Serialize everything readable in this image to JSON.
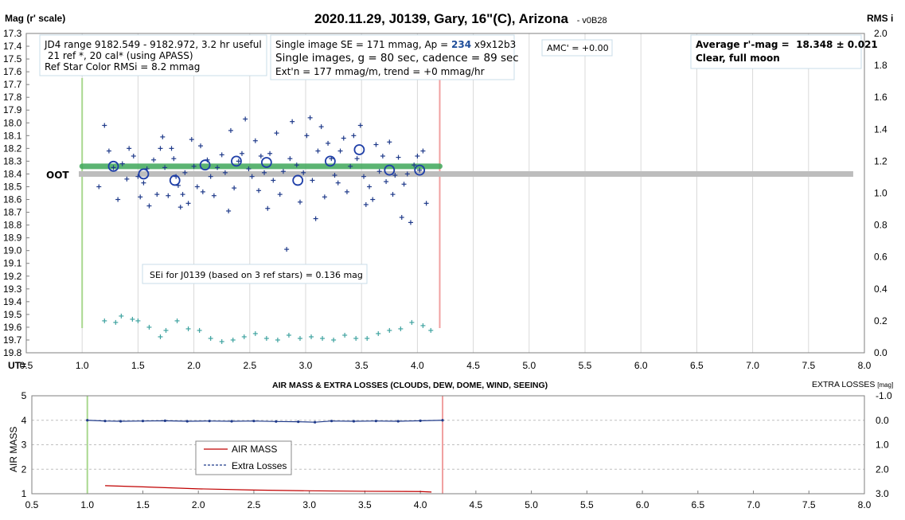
{
  "chart_data": [
    {
      "type": "scatter",
      "title": "2020.11.29, J0139, Gary, 16\"(C), Arizona",
      "version": "- v0B28",
      "ylabel_left": "Mag (r' scale)",
      "ylabel_right": "RMS i",
      "xlabel": "UT=",
      "xlim": [
        0.5,
        8.0
      ],
      "ylim": [
        17.3,
        19.8
      ],
      "ylim_right": [
        0.0,
        2.0
      ],
      "xticks": [
        "0.5",
        "1.0",
        "1.5",
        "2.0",
        "2.5",
        "3.0",
        "3.5",
        "4.0",
        "4.5",
        "5.0",
        "5.5",
        "6.0",
        "6.5",
        "7.0",
        "7.5",
        "8.0"
      ],
      "yticks": [
        "17.3",
        "17.4",
        "17.5",
        "17.6",
        "17.7",
        "17.8",
        "17.9",
        "18.0",
        "18.1",
        "18.2",
        "18.3",
        "18.4",
        "18.5",
        "18.6",
        "18.7",
        "18.8",
        "18.9",
        "19.0",
        "19.1",
        "19.2",
        "19.3",
        "19.4",
        "19.5",
        "19.6",
        "19.7",
        "19.8"
      ],
      "yticks_right": [
        "2.0",
        "1.8",
        "1.6",
        "1.4",
        "1.2",
        "1.0",
        "0.8",
        "0.6",
        "0.4",
        "0.2",
        "0.0"
      ],
      "vlines": {
        "start_ut": 1.0,
        "end_ut": 4.2,
        "start_color": "#a9d88f",
        "end_color": "#f0a0a0"
      },
      "fit_line": {
        "x": [
          1.0,
          4.2
        ],
        "y": [
          18.34,
          18.34
        ],
        "color": "#3fa85a"
      },
      "oot_line": {
        "label": "OOT",
        "y": 18.4,
        "x": [
          0.5,
          7.9
        ],
        "color": "#bdbdbd"
      },
      "series": [
        {
          "name": "single images",
          "color": "#1f3a8a",
          "marker": "plus",
          "points": [
            [
              1.15,
              18.5
            ],
            [
              1.2,
              18.02
            ],
            [
              1.24,
              18.22
            ],
            [
              1.28,
              18.35
            ],
            [
              1.32,
              18.6
            ],
            [
              1.36,
              18.32
            ],
            [
              1.4,
              18.44
            ],
            [
              1.42,
              18.2
            ],
            [
              1.46,
              18.26
            ],
            [
              1.5,
              18.42
            ],
            [
              1.52,
              18.58
            ],
            [
              1.55,
              18.47
            ],
            [
              1.58,
              18.36
            ],
            [
              1.6,
              18.65
            ],
            [
              1.64,
              18.29
            ],
            [
              1.67,
              18.56
            ],
            [
              1.7,
              18.2
            ],
            [
              1.72,
              18.11
            ],
            [
              1.74,
              18.35
            ],
            [
              1.77,
              18.57
            ],
            [
              1.8,
              18.2
            ],
            [
              1.82,
              18.28
            ],
            [
              1.84,
              18.42
            ],
            [
              1.86,
              18.49
            ],
            [
              1.88,
              18.66
            ],
            [
              1.9,
              18.56
            ],
            [
              1.92,
              18.39
            ],
            [
              1.95,
              18.63
            ],
            [
              1.98,
              18.13
            ],
            [
              2.0,
              18.34
            ],
            [
              2.03,
              18.5
            ],
            [
              2.06,
              18.18
            ],
            [
              2.08,
              18.54
            ],
            [
              2.12,
              18.29
            ],
            [
              2.15,
              18.42
            ],
            [
              2.18,
              18.57
            ],
            [
              2.21,
              18.35
            ],
            [
              2.25,
              18.25
            ],
            [
              2.28,
              18.39
            ],
            [
              2.31,
              18.69
            ],
            [
              2.33,
              18.06
            ],
            [
              2.36,
              18.51
            ],
            [
              2.4,
              18.3
            ],
            [
              2.43,
              18.24
            ],
            [
              2.46,
              17.97
            ],
            [
              2.49,
              18.36
            ],
            [
              2.52,
              18.42
            ],
            [
              2.55,
              18.14
            ],
            [
              2.58,
              18.53
            ],
            [
              2.6,
              18.26
            ],
            [
              2.63,
              18.39
            ],
            [
              2.66,
              18.67
            ],
            [
              2.68,
              18.24
            ],
            [
              2.71,
              18.45
            ],
            [
              2.74,
              18.08
            ],
            [
              2.77,
              18.56
            ],
            [
              2.8,
              18.38
            ],
            [
              2.83,
              18.99
            ],
            [
              2.86,
              18.28
            ],
            [
              2.88,
              17.99
            ],
            [
              2.92,
              18.33
            ],
            [
              2.95,
              18.62
            ],
            [
              2.98,
              18.39
            ],
            [
              3.01,
              18.1
            ],
            [
              3.04,
              17.96
            ],
            [
              3.06,
              18.45
            ],
            [
              3.09,
              18.75
            ],
            [
              3.11,
              18.22
            ],
            [
              3.14,
              18.03
            ],
            [
              3.17,
              18.58
            ],
            [
              3.2,
              18.16
            ],
            [
              3.23,
              18.28
            ],
            [
              3.26,
              18.41
            ],
            [
              3.29,
              18.47
            ],
            [
              3.31,
              18.22
            ],
            [
              3.34,
              18.12
            ],
            [
              3.37,
              18.54
            ],
            [
              3.4,
              18.34
            ],
            [
              3.43,
              18.1
            ],
            [
              3.46,
              18.28
            ],
            [
              3.49,
              18.02
            ],
            [
              3.52,
              18.42
            ],
            [
              3.54,
              18.64
            ],
            [
              3.57,
              18.5
            ],
            [
              3.6,
              18.6
            ],
            [
              3.63,
              18.17
            ],
            [
              3.66,
              18.38
            ],
            [
              3.69,
              18.26
            ],
            [
              3.72,
              18.46
            ],
            [
              3.75,
              18.15
            ],
            [
              3.78,
              18.56
            ],
            [
              3.8,
              18.41
            ],
            [
              3.83,
              18.27
            ],
            [
              3.86,
              18.74
            ],
            [
              3.88,
              18.48
            ],
            [
              3.91,
              18.4
            ],
            [
              3.94,
              18.78
            ],
            [
              3.97,
              18.33
            ],
            [
              4.0,
              18.26
            ],
            [
              4.02,
              18.37
            ],
            [
              4.05,
              18.22
            ],
            [
              4.08,
              18.63
            ]
          ]
        },
        {
          "name": "binned averages",
          "color": "#1f3fa8",
          "marker": "circle",
          "points": [
            [
              1.28,
              18.34
            ],
            [
              1.55,
              18.4
            ],
            [
              1.83,
              18.45
            ],
            [
              2.1,
              18.33
            ],
            [
              2.38,
              18.3
            ],
            [
              2.65,
              18.31
            ],
            [
              2.93,
              18.45
            ],
            [
              3.22,
              18.3
            ],
            [
              3.48,
              18.21
            ],
            [
              3.75,
              18.37
            ],
            [
              4.02,
              18.37
            ]
          ]
        },
        {
          "name": "RMS i",
          "axis": "right",
          "color": "#3fa3a0",
          "marker": "plus",
          "points": [
            [
              1.2,
              0.2
            ],
            [
              1.3,
              0.19
            ],
            [
              1.35,
              0.23
            ],
            [
              1.45,
              0.21
            ],
            [
              1.5,
              0.2
            ],
            [
              1.6,
              0.16
            ],
            [
              1.7,
              0.1
            ],
            [
              1.75,
              0.14
            ],
            [
              1.85,
              0.2
            ],
            [
              1.95,
              0.15
            ],
            [
              2.05,
              0.14
            ],
            [
              2.15,
              0.09
            ],
            [
              2.25,
              0.07
            ],
            [
              2.35,
              0.08
            ],
            [
              2.45,
              0.1
            ],
            [
              2.55,
              0.12
            ],
            [
              2.65,
              0.09
            ],
            [
              2.75,
              0.08
            ],
            [
              2.85,
              0.11
            ],
            [
              2.95,
              0.09
            ],
            [
              3.05,
              0.1
            ],
            [
              3.15,
              0.09
            ],
            [
              3.25,
              0.08
            ],
            [
              3.35,
              0.11
            ],
            [
              3.45,
              0.09
            ],
            [
              3.55,
              0.09
            ],
            [
              3.65,
              0.12
            ],
            [
              3.75,
              0.14
            ],
            [
              3.85,
              0.15
            ],
            [
              3.95,
              0.19
            ],
            [
              4.05,
              0.17
            ],
            [
              4.12,
              0.14
            ]
          ]
        }
      ],
      "annotations": {
        "jd_box": [
          "JD4 range 9182.549 - 9182.972, 3.2 hr useful",
          " 21 ref *, 20 cal* (using APASS)",
          "Ref Star Color RMSi = 8.2 mmag"
        ],
        "se_box": {
          "line1_prefix": "Single image SE = 171 mmag, Ap = ",
          "line1_ap": "234",
          "line1_suffix": " x9x12b3",
          "line2": "Single images, g = 80 sec, cadence = 89 sec",
          "line3": "Ext'n = 177 mmag/m, trend = +0 mmag/hr"
        },
        "amc_box": "AMC' = +0.00",
        "avg_box": [
          "Average r'-mag =  18.348 ± 0.021",
          "Clear, full moon"
        ],
        "sei_box": "SEi for J0139 (based on 3 ref stars) = 0.136 mag"
      }
    },
    {
      "type": "line",
      "title": "AIR MASS & EXTRA LOSSES (CLOUDS, DEW, DOME, WIND, SEEING)",
      "ylabel_left": "AIR MASS",
      "ylabel_right_prefix": "EXTRA LOSSES ",
      "ylabel_right_unit": "[mag]",
      "xlim": [
        0.5,
        8.0
      ],
      "ylim": [
        1,
        5
      ],
      "ylim_right": [
        3.0,
        -1.0
      ],
      "xticks": [
        "0.5",
        "1.0",
        "1.5",
        "2.0",
        "2.5",
        "3.0",
        "3.5",
        "4.0",
        "4.5",
        "5.0",
        "5.5",
        "6.0",
        "6.5",
        "7.0",
        "7.5",
        "8.0"
      ],
      "yticks": [
        "1",
        "2",
        "3",
        "4",
        "5"
      ],
      "yticks_right": [
        "3.0",
        "2.0",
        "1.0",
        "0.0",
        "-1.0"
      ],
      "vlines": {
        "start_ut": 1.0,
        "end_ut": 4.2,
        "start_color": "#a9d88f",
        "end_color": "#f0a0a0"
      },
      "legend": "inside",
      "series": [
        {
          "name": "AIR MASS",
          "color": "#c00000",
          "axis": "left",
          "x": [
            1.16,
            1.5,
            2.0,
            2.5,
            3.0,
            3.5,
            4.0,
            4.1
          ],
          "y": [
            1.33,
            1.28,
            1.2,
            1.15,
            1.12,
            1.1,
            1.09,
            1.07
          ]
        },
        {
          "name": "Extra Losses",
          "color": "#1f3a8a",
          "axis": "right",
          "x": [
            1.0,
            1.16,
            1.3,
            1.5,
            1.7,
            1.9,
            2.1,
            2.3,
            2.5,
            2.7,
            2.9,
            3.05,
            3.2,
            3.4,
            3.6,
            3.8,
            4.0,
            4.2
          ],
          "y": [
            0.0,
            0.03,
            0.04,
            0.03,
            0.02,
            0.04,
            0.03,
            0.04,
            0.03,
            0.05,
            0.06,
            0.08,
            0.03,
            0.04,
            0.03,
            0.04,
            0.02,
            0.0
          ]
        }
      ]
    }
  ]
}
